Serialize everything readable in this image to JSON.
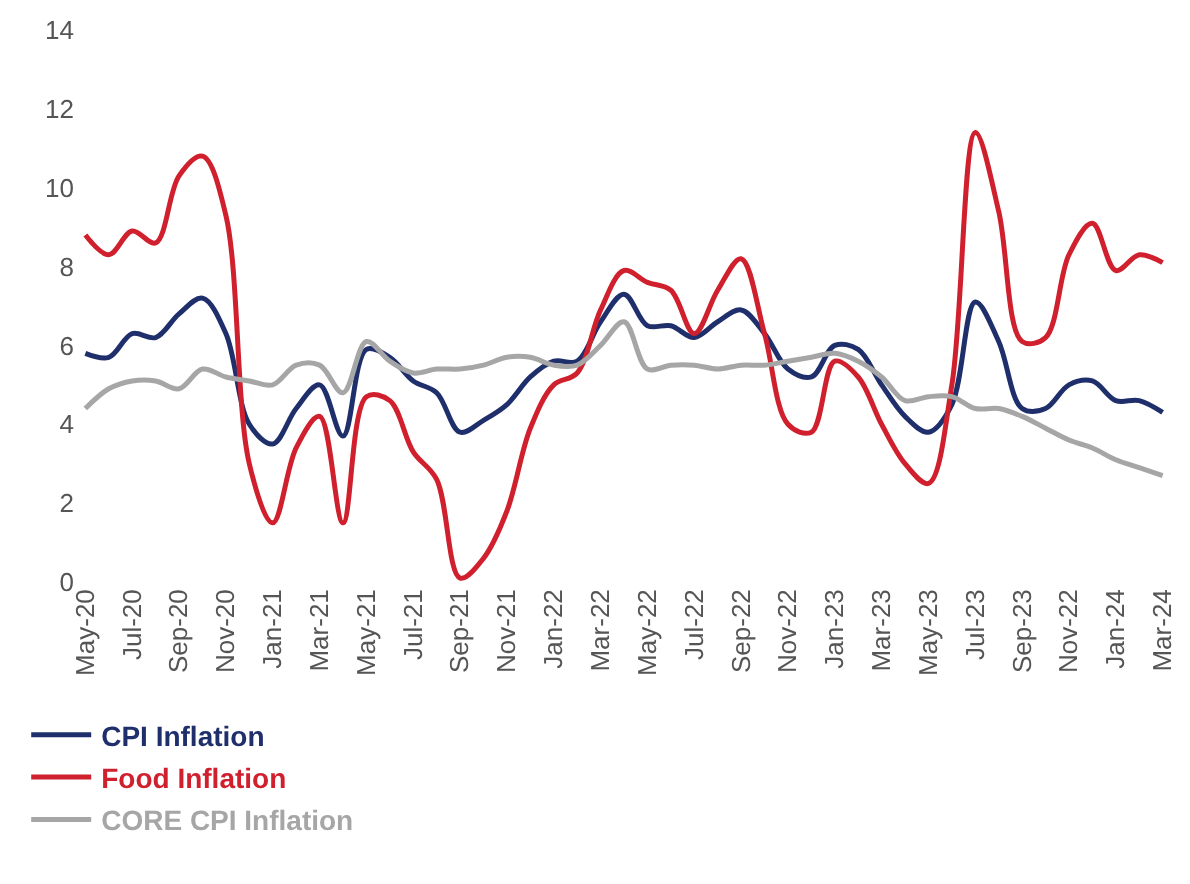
{
  "chart_data": {
    "type": "line",
    "categories": [
      "May-20",
      null,
      "Jul-20",
      null,
      "Sep-20",
      null,
      "Nov-20",
      null,
      "Jan-21",
      null,
      "Mar-21",
      null,
      "May-21",
      null,
      "Jul-21",
      null,
      "Sep-21",
      null,
      "Nov-21",
      null,
      "Jan-22",
      null,
      "Mar-22",
      null,
      "May-22",
      null,
      "Jul-22",
      null,
      "Sep-22",
      null,
      "Nov-22",
      null,
      "Jan-23",
      null,
      "Mar-23",
      null,
      "May-23",
      null,
      "Jul-23",
      null,
      "Sep-23",
      null,
      "Nov-22",
      null,
      "Jan-24",
      null,
      "Mar-24"
    ],
    "series": [
      {
        "name": "CPI Inflation",
        "color": "#1f2f6b",
        "values": [
          5.8,
          5.7,
          6.3,
          6.2,
          6.8,
          7.2,
          6.3,
          4.0,
          3.5,
          4.4,
          5.0,
          3.7,
          5.9,
          5.7,
          5.1,
          4.8,
          3.8,
          4.1,
          4.5,
          5.2,
          5.6,
          5.6,
          6.6,
          7.3,
          6.5,
          6.5,
          6.2,
          6.6,
          6.9,
          6.3,
          5.4,
          5.2,
          6.0,
          5.9,
          5.0,
          4.2,
          3.8,
          4.5,
          7.1,
          6.1,
          4.4,
          4.4,
          5.0,
          5.1,
          4.6,
          4.6,
          4.3
        ]
      },
      {
        "name": "Food Inflation",
        "color": "#d0202e",
        "values": [
          8.8,
          8.3,
          8.9,
          8.6,
          10.3,
          10.8,
          9.3,
          3.0,
          1.5,
          3.4,
          4.2,
          1.5,
          4.7,
          4.6,
          3.3,
          2.6,
          0.1,
          0.6,
          1.8,
          3.9,
          5.0,
          5.3,
          6.9,
          7.9,
          7.6,
          7.4,
          6.3,
          7.4,
          8.2,
          6.3,
          4.0,
          3.8,
          5.6,
          5.2,
          4.0,
          3.0,
          2.5,
          5.0,
          11.4,
          9.4,
          6.1,
          6.2,
          8.3,
          9.1,
          7.9,
          8.3,
          8.1
        ]
      },
      {
        "name": "CORE CPI Inflation",
        "color": "#a6a6a6",
        "values": [
          4.4,
          4.9,
          5.1,
          5.1,
          4.9,
          5.4,
          5.2,
          5.1,
          5.0,
          5.5,
          5.5,
          4.8,
          6.1,
          5.6,
          5.3,
          5.4,
          5.4,
          5.5,
          5.7,
          5.7,
          5.5,
          5.5,
          6.0,
          6.6,
          5.4,
          5.5,
          5.5,
          5.4,
          5.5,
          5.5,
          5.6,
          5.7,
          5.8,
          5.6,
          5.2,
          4.6,
          4.7,
          4.7,
          4.4,
          4.4,
          4.2,
          3.9,
          3.6,
          3.4,
          3.1,
          2.9,
          2.7
        ]
      }
    ],
    "ylim": [
      0,
      14
    ],
    "yticks": [
      0,
      2,
      4,
      6,
      8,
      10,
      12,
      14
    ],
    "legend": "bottom left",
    "marker": "none",
    "line_style": "solid"
  }
}
